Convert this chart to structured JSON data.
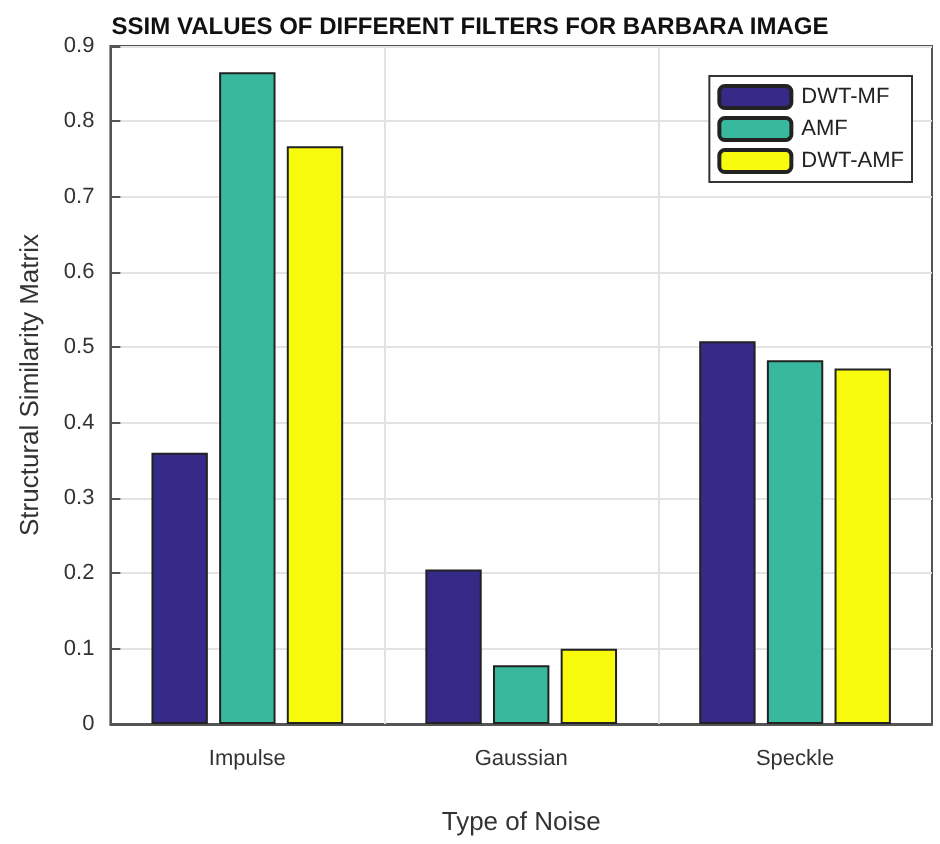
{
  "chart_data": {
    "type": "bar",
    "title": "SSIM VALUES OF DIFFERENT FILTERS FOR BARBARA IMAGE",
    "xlabel": "Type of Noise",
    "ylabel": "Structural Similarity Matrix",
    "categories": [
      "Impulse",
      "Gaussian",
      "Speckle"
    ],
    "series": [
      {
        "name": "DWT-MF",
        "color": "#352a87",
        "values": [
          0.36,
          0.205,
          0.508
        ]
      },
      {
        "name": "AMF",
        "color": "#38b99e",
        "values": [
          0.865,
          0.078,
          0.483
        ]
      },
      {
        "name": "DWT-AMF",
        "color": "#f8fa0d",
        "values": [
          0.767,
          0.1,
          0.472
        ]
      }
    ],
    "ylim": [
      0,
      0.9
    ],
    "yticks": [
      0,
      0.1,
      0.2,
      0.3,
      0.4,
      0.5,
      0.6,
      0.7,
      0.8,
      0.9
    ],
    "grid": true,
    "legend": "top right"
  }
}
